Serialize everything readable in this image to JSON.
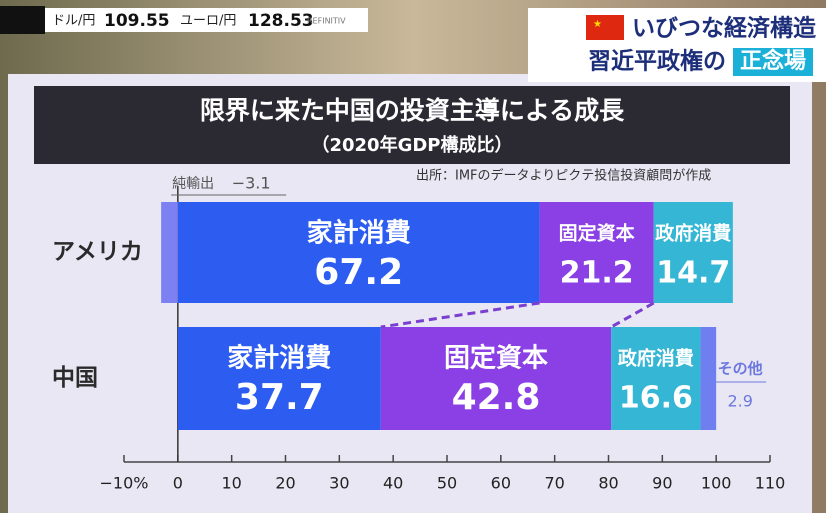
{
  "ticker": {
    "items": [
      {
        "label": "ドル/円",
        "value": 109.55
      },
      {
        "label": "ユーロ/円",
        "value": 128.53
      }
    ],
    "source": "REFINITIV"
  },
  "header": {
    "topic": "いびつな経済構造",
    "subtitle": "習近平政権の",
    "highlight": "正念場"
  },
  "chart_data": {
    "type": "stacked-bar-horizontal",
    "title": "限界に来た中国の投資主導による成長",
    "subtitle": "（2020年GDP構成比）",
    "source": "出所：IMFのデータよりピクテ投信投資顧問が作成",
    "categories": [
      "アメリカ",
      "中国"
    ],
    "series": [
      {
        "name": "家計消費",
        "color": "#2c5cf0",
        "values": [
          67.2,
          37.7
        ]
      },
      {
        "name": "固定資本",
        "color": "#8a40e4",
        "values": [
          21.2,
          42.8
        ]
      },
      {
        "name": "政府消費",
        "color": "#35b6d4",
        "values": [
          14.7,
          16.6
        ]
      },
      {
        "name": "純輸出",
        "color": "#7c80f2",
        "values": [
          -3.1,
          null
        ],
        "value_labels": [
          "−3.1",
          null
        ]
      },
      {
        "name": "その他",
        "color": "#6f7ff0",
        "values": [
          null,
          2.9
        ]
      }
    ],
    "xlim": [
      -10,
      110
    ],
    "xticks": [
      {
        "value": -10,
        "label": "−10%"
      },
      0,
      10,
      20,
      30,
      40,
      50,
      60,
      70,
      80,
      90,
      100,
      110
    ]
  }
}
